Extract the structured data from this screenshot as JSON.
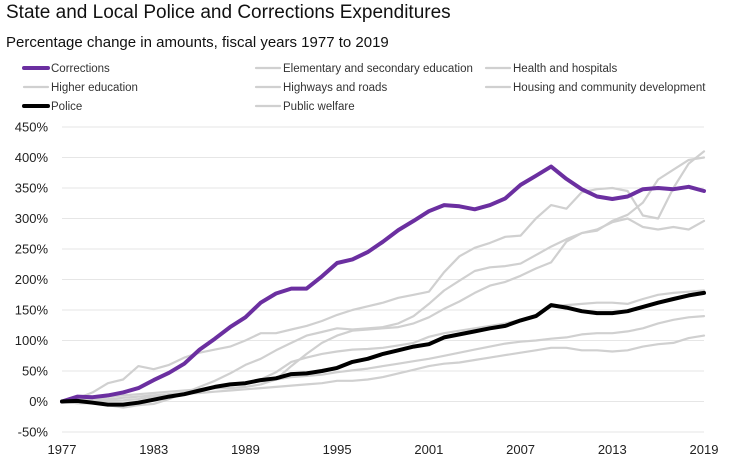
{
  "chart_data": {
    "type": "line",
    "title": "State and Local Police and Corrections Expenditures",
    "subtitle": "Percentage change in amounts, fiscal years 1977 to 2019",
    "xlabel": "",
    "ylabel": "",
    "xlim": [
      1977,
      2019
    ],
    "ylim": [
      -50,
      450
    ],
    "x_ticks": [
      "1977",
      "1983",
      "1989",
      "1995",
      "2001",
      "2007",
      "2013",
      "2019"
    ],
    "y_ticks": [
      "-50%",
      "0%",
      "50%",
      "100%",
      "150%",
      "200%",
      "250%",
      "300%",
      "350%",
      "400%",
      "450%"
    ],
    "grid": true,
    "legend_position": "top",
    "x": [
      1977,
      1978,
      1979,
      1980,
      1981,
      1982,
      1983,
      1984,
      1985,
      1986,
      1987,
      1988,
      1989,
      1990,
      1991,
      1992,
      1993,
      1994,
      1995,
      1996,
      1997,
      1998,
      1999,
      2000,
      2001,
      2002,
      2003,
      2004,
      2005,
      2006,
      2007,
      2008,
      2009,
      2010,
      2011,
      2012,
      2013,
      2014,
      2015,
      2016,
      2017,
      2018,
      2019
    ],
    "series": [
      {
        "name": "Corrections",
        "color": "#6b2fa0",
        "emphasis": true,
        "values": [
          0,
          8,
          7,
          10,
          15,
          22,
          35,
          47,
          62,
          85,
          103,
          122,
          138,
          162,
          177,
          185,
          185,
          205,
          227,
          233,
          245,
          262,
          281,
          296,
          312,
          322,
          320,
          315,
          322,
          333,
          355,
          370,
          385,
          365,
          348,
          336,
          332,
          336,
          348,
          350,
          348,
          352,
          345
        ]
      },
      {
        "name": "Elementary and secondary education",
        "color": "#d0d0d0",
        "values": [
          0,
          1,
          1,
          1,
          2,
          4,
          8,
          12,
          14,
          18,
          22,
          26,
          30,
          33,
          36,
          40,
          42,
          44,
          48,
          51,
          54,
          58,
          62,
          66,
          70,
          75,
          80,
          85,
          90,
          95,
          98,
          100,
          103,
          105,
          110,
          112,
          112,
          115,
          120,
          128,
          134,
          138,
          140
        ]
      },
      {
        "name": "Health and hospitals",
        "color": "#d0d0d0",
        "values": [
          0,
          2,
          3,
          4,
          6,
          8,
          10,
          12,
          13,
          14,
          16,
          18,
          20,
          22,
          24,
          26,
          28,
          30,
          34,
          34,
          36,
          40,
          46,
          52,
          58,
          62,
          64,
          68,
          72,
          76,
          80,
          84,
          88,
          88,
          84,
          84,
          82,
          84,
          90,
          94,
          96,
          104,
          108
        ]
      },
      {
        "name": "Higher education",
        "color": "#d0d0d0",
        "values": [
          0,
          5,
          15,
          30,
          36,
          58,
          53,
          60,
          72,
          80,
          85,
          90,
          100,
          112,
          112,
          118,
          124,
          132,
          142,
          150,
          156,
          162,
          170,
          175,
          180,
          212,
          238,
          252,
          260,
          270,
          272,
          300,
          322,
          316,
          343,
          348,
          350,
          345,
          305,
          300,
          350,
          390,
          410
        ]
      },
      {
        "name": "Highways and roads",
        "color": "#d0d0d0",
        "values": [
          0,
          -3,
          -3,
          -4,
          -4,
          0,
          4,
          10,
          15,
          20,
          24,
          28,
          30,
          36,
          48,
          65,
          72,
          78,
          82,
          85,
          86,
          88,
          92,
          96,
          106,
          112,
          116,
          120,
          124,
          128,
          134,
          142,
          156,
          158,
          160,
          162,
          162,
          160,
          168,
          175,
          178,
          180,
          182
        ]
      },
      {
        "name": "Housing and community development",
        "color": "#d0d0d0",
        "values": [
          0,
          0,
          -2,
          -6,
          -10,
          -6,
          -4,
          4,
          14,
          24,
          34,
          46,
          60,
          70,
          84,
          96,
          108,
          114,
          120,
          118,
          120,
          122,
          128,
          140,
          160,
          182,
          198,
          214,
          220,
          222,
          226,
          240,
          254,
          266,
          276,
          282,
          294,
          300,
          286,
          282,
          286,
          282,
          296
        ]
      },
      {
        "name": "Police",
        "color": "#000000",
        "emphasis": true,
        "values": [
          0,
          1,
          -2,
          -5,
          -5,
          -2,
          3,
          8,
          12,
          18,
          24,
          28,
          30,
          35,
          38,
          45,
          46,
          50,
          55,
          65,
          70,
          78,
          84,
          90,
          94,
          105,
          110,
          115,
          120,
          124,
          133,
          140,
          158,
          154,
          148,
          145,
          145,
          148,
          155,
          162,
          168,
          174,
          178
        ]
      },
      {
        "name": "Public welfare",
        "color": "#d0d0d0",
        "values": [
          0,
          0,
          3,
          8,
          10,
          12,
          14,
          16,
          18,
          20,
          22,
          22,
          24,
          28,
          36,
          58,
          78,
          96,
          108,
          116,
          118,
          120,
          122,
          128,
          138,
          152,
          164,
          178,
          190,
          196,
          206,
          218,
          228,
          262,
          276,
          280,
          296,
          306,
          326,
          364,
          380,
          396,
          400
        ]
      }
    ]
  }
}
